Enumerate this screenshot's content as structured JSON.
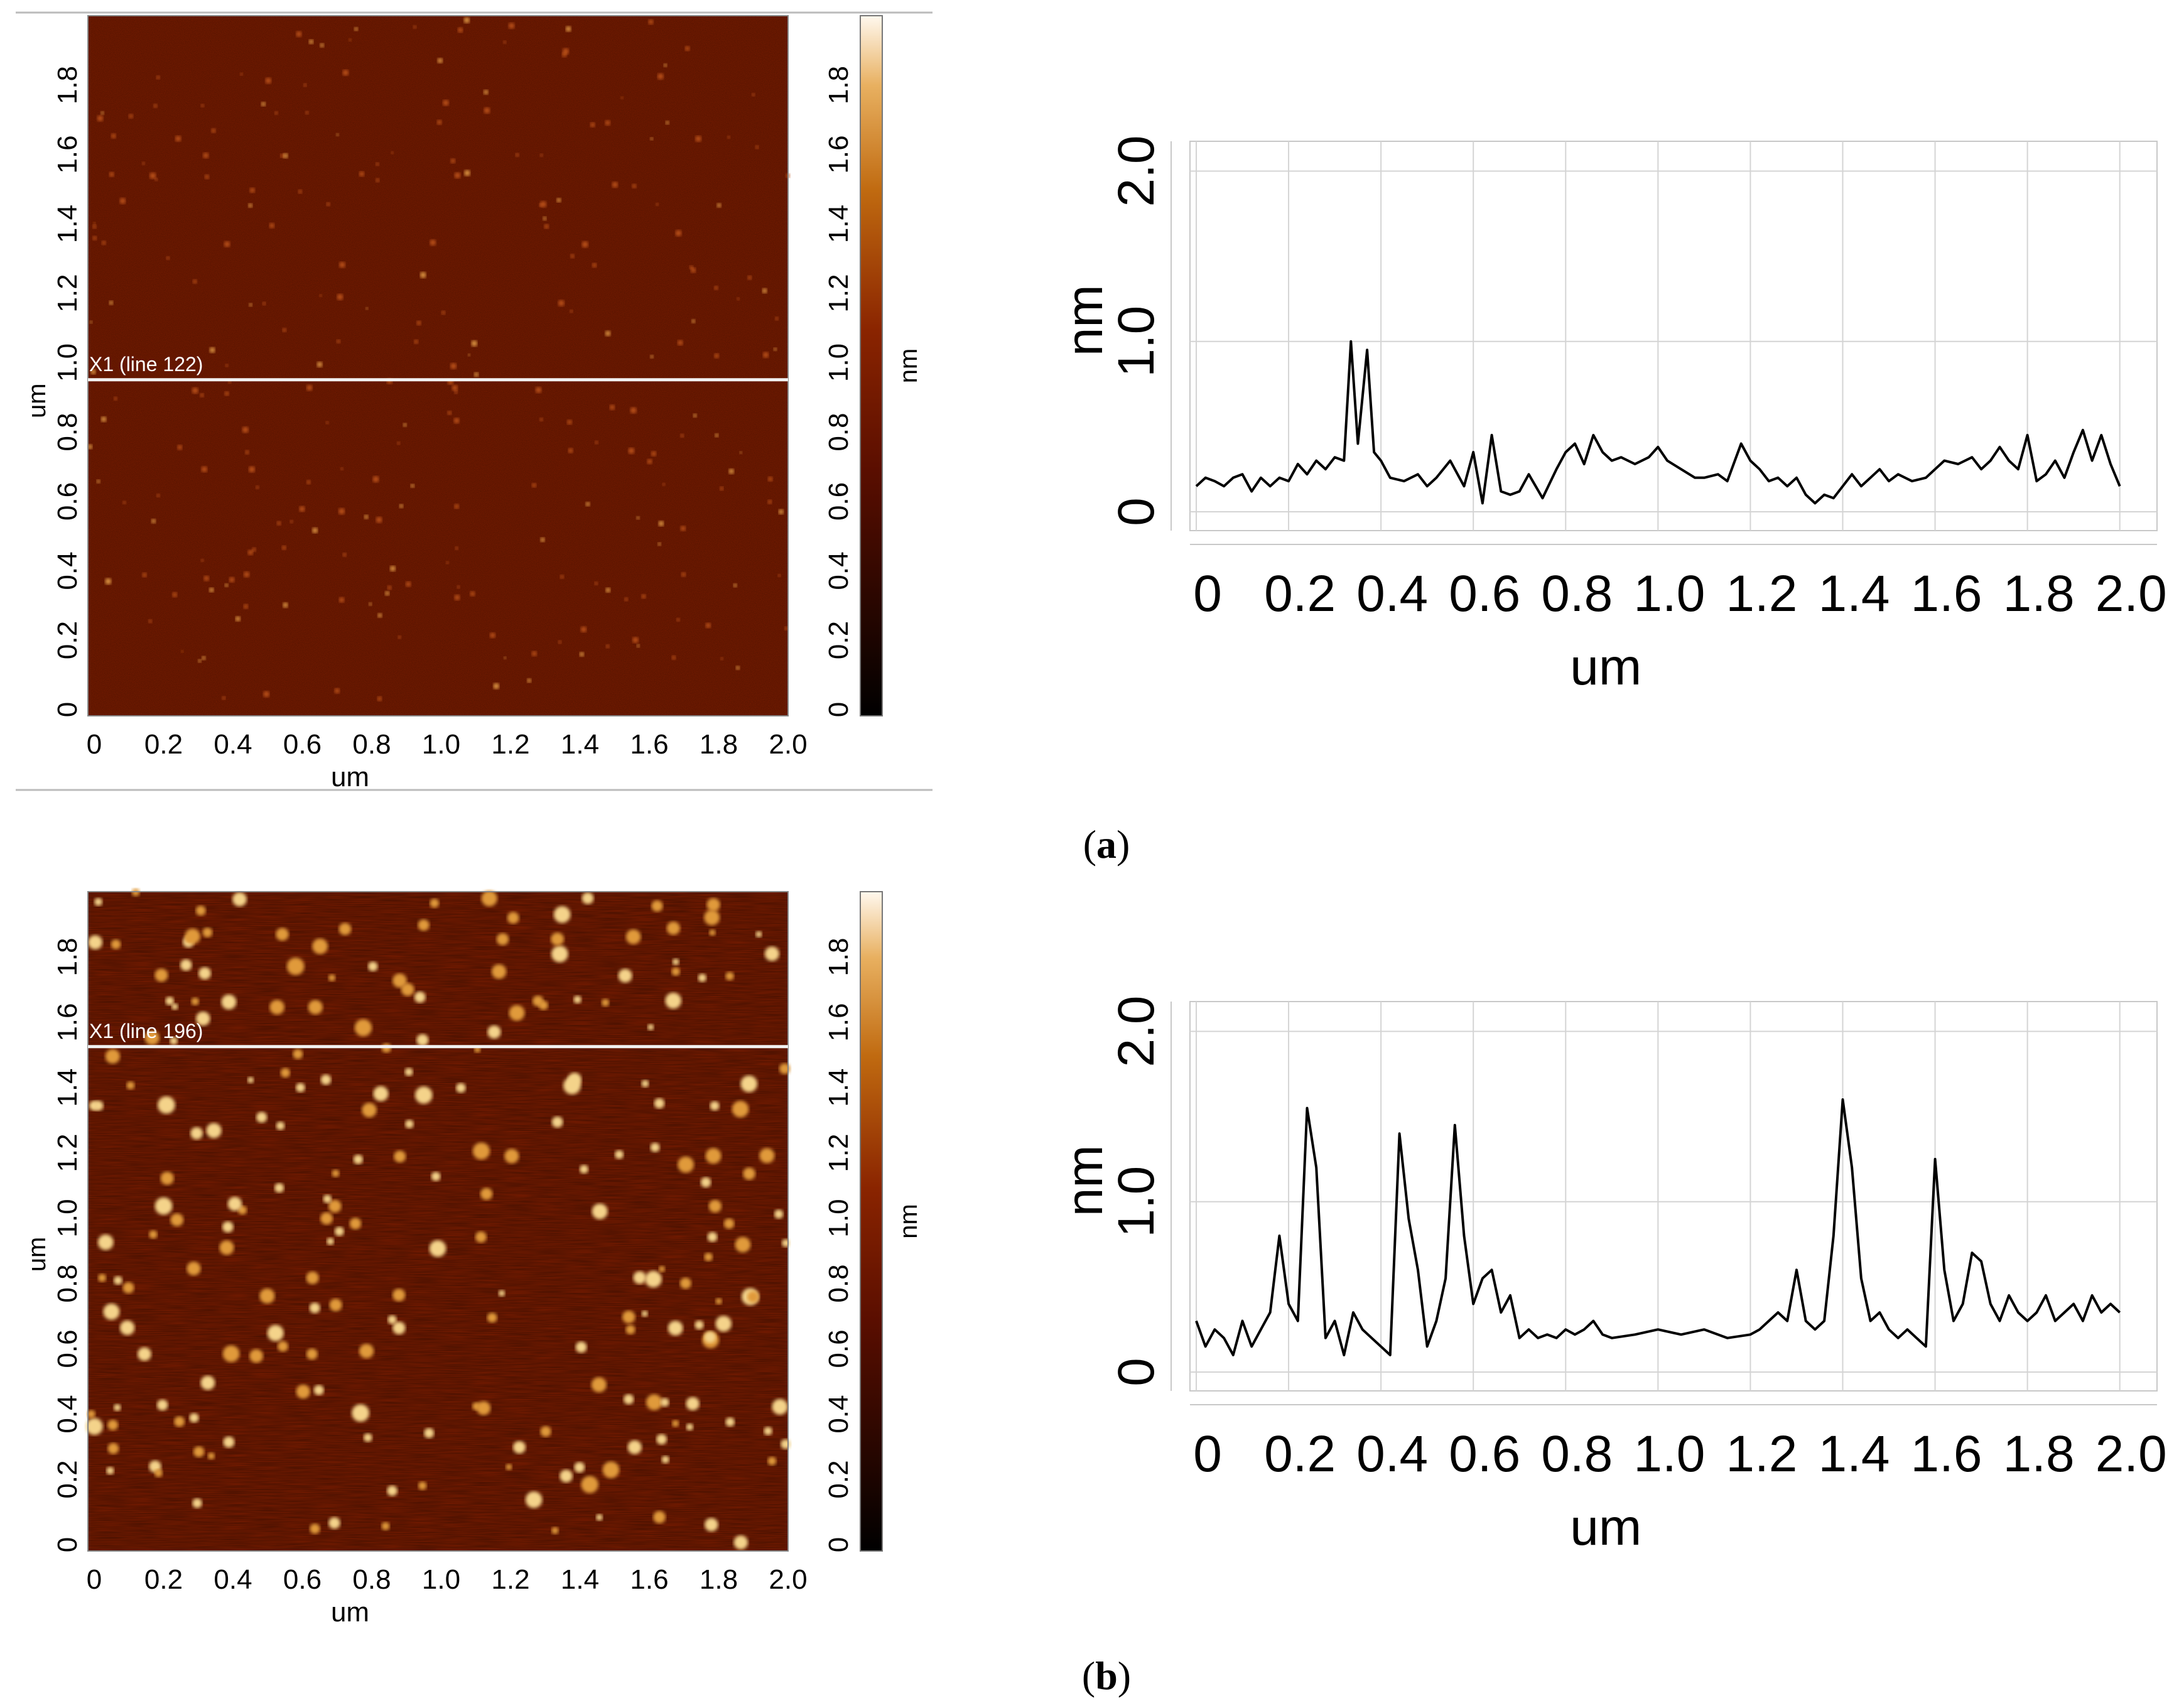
{
  "panels": [
    {
      "caption_label": "a",
      "afm_image": {
        "x_axis_label": "um",
        "y_axis_label": "um",
        "x_ticks": [
          "0",
          "0.2",
          "0.4",
          "0.6",
          "0.8",
          "1.0",
          "1.2",
          "1.4",
          "1.6",
          "1.8",
          "2.0"
        ],
        "y_ticks": [
          "0",
          "0.2",
          "0.4",
          "0.6",
          "0.8",
          "1.0",
          "1.2",
          "1.4",
          "1.6",
          "1.8"
        ],
        "colorbar_ticks": [
          "0",
          "0.2",
          "0.4",
          "0.6",
          "0.8",
          "1.0",
          "1.2",
          "1.4",
          "1.6",
          "1.8"
        ],
        "colorbar_label": "nm",
        "scan_line_label": "X1 (line 122)",
        "scan_line_y_um": 0.96,
        "background_color": "#7a1c00",
        "feature_density": "sparse"
      },
      "profile_chart": {
        "xlabel": "um",
        "ylabel": "nm",
        "x_ticks": [
          "0",
          "0.2",
          "0.4",
          "0.6",
          "0.8",
          "1.0",
          "1.2",
          "1.4",
          "1.6",
          "1.8",
          "2.0"
        ],
        "y_ticks": [
          "0",
          "1.0",
          "2.0"
        ]
      }
    },
    {
      "caption_label": "b",
      "afm_image": {
        "x_axis_label": "um",
        "y_axis_label": "um",
        "x_ticks": [
          "0",
          "0.2",
          "0.4",
          "0.6",
          "0.8",
          "1.0",
          "1.2",
          "1.4",
          "1.6",
          "1.8",
          "2.0"
        ],
        "y_ticks": [
          "0",
          "0.2",
          "0.4",
          "0.6",
          "0.8",
          "1.0",
          "1.2",
          "1.4",
          "1.6",
          "1.8"
        ],
        "colorbar_ticks": [
          "0",
          "0.2",
          "0.4",
          "0.6",
          "0.8",
          "1.0",
          "1.2",
          "1.4",
          "1.6",
          "1.8"
        ],
        "colorbar_label": "nm",
        "scan_line_label": "X1 (line 196)",
        "scan_line_y_um": 1.53,
        "background_color": "#7a1c00",
        "feature_density": "dense"
      },
      "profile_chart": {
        "xlabel": "um",
        "ylabel": "nm",
        "x_ticks": [
          "0",
          "0.2",
          "0.4",
          "0.6",
          "0.8",
          "1.0",
          "1.2",
          "1.4",
          "1.6",
          "1.8",
          "2.0"
        ],
        "y_ticks": [
          "0",
          "1.0",
          "2.0"
        ]
      }
    }
  ],
  "chart_data": [
    {
      "type": "line",
      "xlabel": "um",
      "ylabel": "nm",
      "xlim": [
        0,
        2.0
      ],
      "ylim": [
        0,
        2.0
      ],
      "grid": true,
      "series": [
        {
          "x": [
            0,
            0.02,
            0.04,
            0.06,
            0.08,
            0.1,
            0.12,
            0.14,
            0.16,
            0.18,
            0.2,
            0.22,
            0.24,
            0.26,
            0.28,
            0.3,
            0.32,
            0.335,
            0.35,
            0.37,
            0.385,
            0.4,
            0.42,
            0.45,
            0.48,
            0.5,
            0.52,
            0.55,
            0.58,
            0.6,
            0.62,
            0.64,
            0.66,
            0.68,
            0.7,
            0.72,
            0.75,
            0.78,
            0.8,
            0.82,
            0.84,
            0.86,
            0.88,
            0.9,
            0.92,
            0.95,
            0.98,
            1.0,
            1.02,
            1.05,
            1.08,
            1.1,
            1.13,
            1.15,
            1.18,
            1.2,
            1.22,
            1.24,
            1.26,
            1.28,
            1.3,
            1.32,
            1.34,
            1.36,
            1.38,
            1.4,
            1.42,
            1.44,
            1.46,
            1.48,
            1.5,
            1.52,
            1.55,
            1.58,
            1.6,
            1.62,
            1.65,
            1.68,
            1.7,
            1.72,
            1.74,
            1.76,
            1.78,
            1.8,
            1.82,
            1.84,
            1.86,
            1.88,
            1.9,
            1.92,
            1.94,
            1.96,
            1.98,
            2.0
          ],
          "y": [
            0.15,
            0.2,
            0.18,
            0.15,
            0.2,
            0.22,
            0.12,
            0.2,
            0.15,
            0.2,
            0.18,
            0.28,
            0.22,
            0.3,
            0.25,
            0.32,
            0.3,
            1.0,
            0.4,
            0.95,
            0.35,
            0.3,
            0.2,
            0.18,
            0.22,
            0.15,
            0.2,
            0.3,
            0.15,
            0.35,
            0.05,
            0.45,
            0.12,
            0.1,
            0.12,
            0.22,
            0.08,
            0.25,
            0.35,
            0.4,
            0.28,
            0.45,
            0.35,
            0.3,
            0.32,
            0.28,
            0.32,
            0.38,
            0.3,
            0.25,
            0.2,
            0.2,
            0.22,
            0.18,
            0.4,
            0.3,
            0.25,
            0.18,
            0.2,
            0.15,
            0.2,
            0.1,
            0.05,
            0.1,
            0.08,
            0.15,
            0.22,
            0.15,
            0.2,
            0.25,
            0.18,
            0.22,
            0.18,
            0.2,
            0.25,
            0.3,
            0.28,
            0.32,
            0.25,
            0.3,
            0.38,
            0.3,
            0.25,
            0.45,
            0.18,
            0.22,
            0.3,
            0.2,
            0.35,
            0.48,
            0.3,
            0.45,
            0.28,
            0.15
          ]
        }
      ]
    },
    {
      "type": "line",
      "xlabel": "um",
      "ylabel": "nm",
      "xlim": [
        0,
        2.0
      ],
      "ylim": [
        0,
        2.0
      ],
      "grid": true,
      "series": [
        {
          "x": [
            0,
            0.02,
            0.04,
            0.06,
            0.08,
            0.1,
            0.12,
            0.14,
            0.16,
            0.18,
            0.2,
            0.22,
            0.24,
            0.26,
            0.28,
            0.3,
            0.32,
            0.34,
            0.36,
            0.38,
            0.4,
            0.42,
            0.44,
            0.46,
            0.48,
            0.5,
            0.52,
            0.54,
            0.56,
            0.58,
            0.6,
            0.62,
            0.64,
            0.66,
            0.68,
            0.7,
            0.72,
            0.74,
            0.76,
            0.78,
            0.8,
            0.82,
            0.84,
            0.86,
            0.88,
            0.9,
            0.95,
            1.0,
            1.05,
            1.1,
            1.15,
            1.2,
            1.22,
            1.24,
            1.26,
            1.28,
            1.3,
            1.32,
            1.34,
            1.36,
            1.38,
            1.4,
            1.42,
            1.44,
            1.46,
            1.48,
            1.5,
            1.52,
            1.54,
            1.56,
            1.58,
            1.6,
            1.62,
            1.64,
            1.66,
            1.68,
            1.7,
            1.72,
            1.74,
            1.76,
            1.78,
            1.8,
            1.82,
            1.84,
            1.86,
            1.88,
            1.9,
            1.92,
            1.94,
            1.96,
            1.98,
            2.0
          ],
          "y": [
            0.3,
            0.15,
            0.25,
            0.2,
            0.1,
            0.3,
            0.15,
            0.25,
            0.35,
            0.8,
            0.4,
            0.3,
            1.55,
            1.2,
            0.2,
            0.3,
            0.1,
            0.35,
            0.25,
            0.2,
            0.15,
            0.1,
            1.4,
            0.9,
            0.6,
            0.15,
            0.3,
            0.55,
            1.45,
            0.8,
            0.4,
            0.55,
            0.6,
            0.35,
            0.45,
            0.2,
            0.25,
            0.2,
            0.22,
            0.2,
            0.25,
            0.22,
            0.25,
            0.3,
            0.22,
            0.2,
            0.22,
            0.25,
            0.22,
            0.25,
            0.2,
            0.22,
            0.25,
            0.3,
            0.35,
            0.3,
            0.6,
            0.3,
            0.25,
            0.3,
            0.8,
            1.6,
            1.2,
            0.55,
            0.3,
            0.35,
            0.25,
            0.2,
            0.25,
            0.2,
            0.15,
            1.25,
            0.6,
            0.3,
            0.4,
            0.7,
            0.65,
            0.4,
            0.3,
            0.45,
            0.35,
            0.3,
            0.35,
            0.45,
            0.3,
            0.35,
            0.4,
            0.3,
            0.45,
            0.35,
            0.4,
            0.35
          ]
        }
      ]
    }
  ]
}
